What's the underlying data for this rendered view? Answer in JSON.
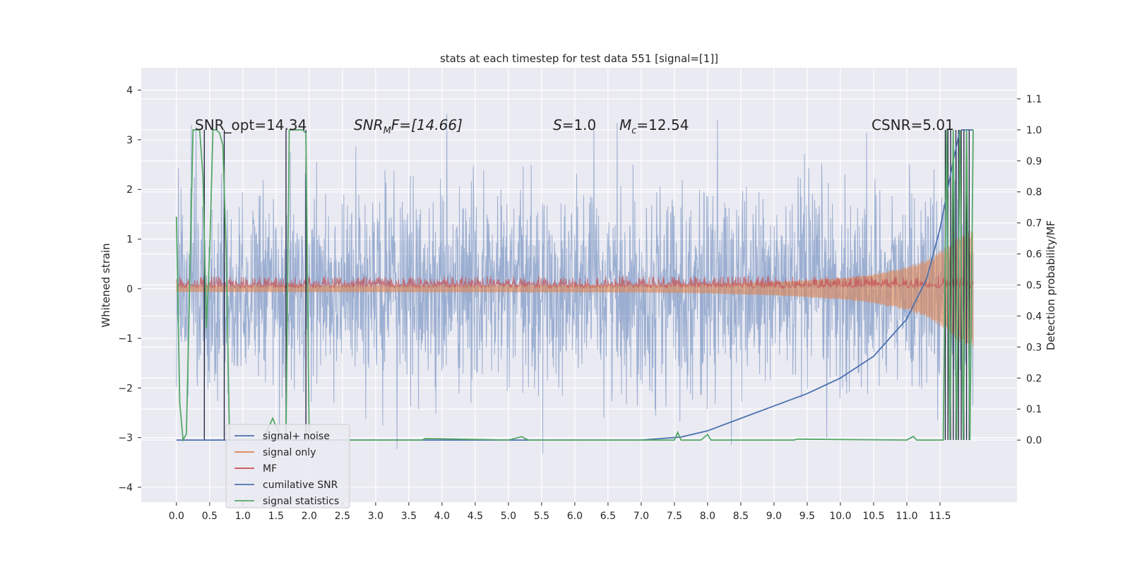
{
  "chart_data": {
    "type": "line",
    "title": "stats at each timestep for test data 551 [signal=[1]]",
    "xlabel": "",
    "ylabel": "Whitened strain",
    "y2label": "Detection probability/MF",
    "xlim": [
      -0.53,
      12.66
    ],
    "ylim": [
      -4.3,
      4.45
    ],
    "y2lim": [
      -0.2,
      1.2
    ],
    "x_ticks": [
      0.0,
      0.5,
      1.0,
      1.5,
      2.0,
      2.5,
      3.0,
      3.5,
      4.0,
      4.5,
      5.0,
      5.5,
      6.0,
      6.5,
      7.0,
      7.5,
      8.0,
      8.5,
      9.0,
      9.5,
      10.0,
      10.5,
      11.0,
      11.5
    ],
    "x_tick_labels": [
      "0.0",
      "0.5",
      "1.0",
      "1.5",
      "2.0",
      "2.5",
      "3.0",
      "3.5",
      "4.0",
      "4.5",
      "5.0",
      "5.5",
      "6.0",
      "6.5",
      "7.0",
      "7.5",
      "8.0",
      "8.5",
      "9.0",
      "9.5",
      "10.0",
      "10.5",
      "11.0",
      "11.5"
    ],
    "y_ticks": [
      4,
      3,
      2,
      1,
      0,
      -1,
      -2,
      -3,
      -4
    ],
    "y_tick_labels": [
      "4",
      "3",
      "2",
      "1",
      "0",
      "−1",
      "−2",
      "−3",
      "−4"
    ],
    "y2_ticks": [
      1.1,
      1.0,
      0.9,
      0.8,
      0.7,
      0.6,
      0.5,
      0.4,
      0.3,
      0.2,
      0.1,
      0.0
    ],
    "y2_tick_labels": [
      "1.1",
      "1.0",
      "0.9",
      "0.8",
      "0.7",
      "0.6",
      "0.5",
      "0.4",
      "0.3",
      "0.2",
      "0.1",
      "0.0"
    ],
    "grid": true,
    "legend_position": "lower-left",
    "annotations": {
      "snr_opt": "SNR_opt=14.34",
      "snr_mf_label": "SNR",
      "snr_mf_sub": "M",
      "snr_mf_rest": "F=[14.66]",
      "s_label": "S",
      "s_rest": "=1.0",
      "mc_label": "M",
      "mc_sub": "c",
      "mc_rest": "=12.54",
      "csnr": "CSNR=5.01"
    },
    "series": [
      {
        "name": "signal+ noise",
        "color": "#4c72b0",
        "axis": "left",
        "description_values": {
          "x_range": [
            0.0,
            12.0
          ],
          "mean": 0.0,
          "std": 1.0,
          "peak": 4.1
        }
      },
      {
        "name": "signal only",
        "color": "#dd8452",
        "axis": "left",
        "envelope_x": [
          0.0,
          7.0,
          8.0,
          9.0,
          10.0,
          10.5,
          11.0,
          11.3,
          11.6,
          11.8,
          12.0
        ],
        "envelope_y": [
          0.07,
          0.08,
          0.1,
          0.14,
          0.22,
          0.3,
          0.45,
          0.6,
          0.85,
          1.1,
          1.2
        ]
      },
      {
        "name": "MF",
        "color": "#c44e52",
        "axis": "right",
        "x": [
          0.0,
          12.0
        ],
        "y": [
          0.5,
          0.5
        ]
      },
      {
        "name": "cumilative SNR",
        "color": "#4c72b0",
        "axis": "right",
        "x": [
          0.0,
          7.0,
          7.3,
          7.6,
          8.0,
          8.5,
          9.0,
          9.5,
          10.0,
          10.5,
          11.0,
          11.3,
          11.5,
          11.7,
          11.8
        ],
        "y": [
          0.0,
          0.0,
          0.005,
          0.01,
          0.03,
          0.07,
          0.11,
          0.15,
          0.2,
          0.27,
          0.39,
          0.52,
          0.68,
          0.9,
          1.0
        ]
      },
      {
        "name": "signal statistics",
        "color": "#55a868",
        "axis": "right",
        "x": [
          0.0,
          0.05,
          0.1,
          0.15,
          0.2,
          0.25,
          0.3,
          0.35,
          0.4,
          0.45,
          0.5,
          0.55,
          0.6,
          0.65,
          0.7,
          0.75,
          0.8,
          1.0,
          1.3,
          1.45,
          1.55,
          1.6,
          1.65,
          1.7,
          1.75,
          1.8,
          1.9,
          1.95,
          2.0,
          2.1,
          3.0,
          3.7,
          3.75,
          5.0,
          5.2,
          5.3,
          7.5,
          7.55,
          7.6,
          7.65,
          7.9,
          8.0,
          8.05,
          9.3,
          9.35,
          11.0,
          11.1,
          11.15,
          11.55,
          11.6,
          11.65,
          11.7,
          11.75,
          11.8,
          11.85,
          11.9,
          11.95,
          12.0
        ],
        "y": [
          0.72,
          0.12,
          0.0,
          0.02,
          0.5,
          1.0,
          1.0,
          1.0,
          0.85,
          0.36,
          0.6,
          1.0,
          1.0,
          0.99,
          0.95,
          0.6,
          0.0,
          0.0,
          0.0,
          0.07,
          0.02,
          0.0,
          0.0,
          1.0,
          1.0,
          1.0,
          1.0,
          0.99,
          0.0,
          0.0,
          0.0,
          0.0,
          0.005,
          0.0,
          0.011,
          0.0,
          0.0,
          0.025,
          0.0,
          0.0,
          0.0,
          0.018,
          0.0,
          0.0,
          0.003,
          0.0,
          0.012,
          0.0,
          0.0,
          1.0,
          0.0,
          1.0,
          0.0,
          1.0,
          0.0,
          1.0,
          0.0,
          1.0
        ]
      }
    ],
    "dark_vertical_lines_x": [
      0.42,
      0.72,
      1.65,
      1.95,
      11.58,
      11.62,
      11.66,
      11.7,
      11.74,
      11.78,
      11.82,
      11.86,
      11.9,
      11.94
    ]
  }
}
